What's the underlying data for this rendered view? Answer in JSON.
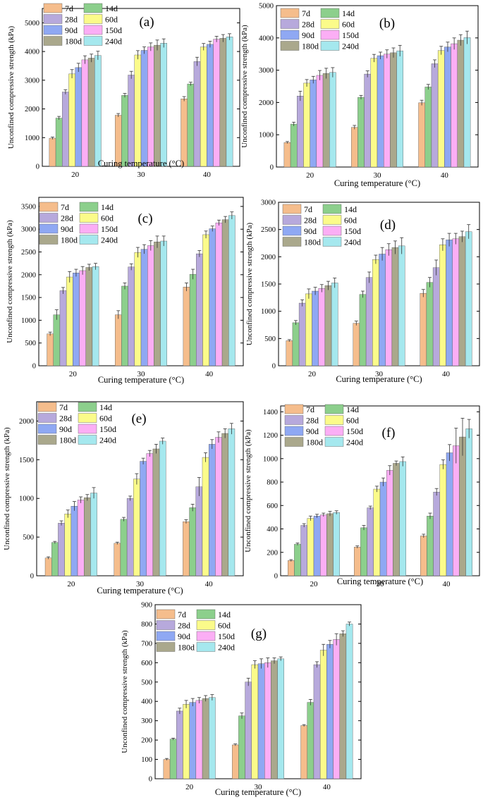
{
  "series_colors": [
    "#f5bd8c",
    "#8ccf8c",
    "#b7a9dc",
    "#fbfb8a",
    "#8fa8f3",
    "#fbaef5",
    "#aaa88c",
    "#a5e8ee"
  ],
  "chart_data": [
    {
      "id": "a",
      "type": "bar",
      "panel_label": "(a)",
      "xlabel": "Curing temperature (°C)",
      "ylabel": "Unconfined compressive strength (kPa)",
      "categories": [
        "20",
        "30",
        "40"
      ],
      "ylim": [
        0,
        5500
      ],
      "yticks": [
        0,
        1000,
        2000,
        3000,
        4000,
        5000
      ],
      "series": [
        {
          "name": "7d",
          "values": [
            980,
            1780,
            2350
          ],
          "errors": [
            40,
            60,
            80
          ]
        },
        {
          "name": "14d",
          "values": [
            1680,
            2470,
            2870
          ],
          "errors": [
            60,
            70,
            60
          ]
        },
        {
          "name": "28d",
          "values": [
            2590,
            3180,
            3650
          ],
          "errors": [
            80,
            130,
            150
          ]
        },
        {
          "name": "60d",
          "values": [
            3220,
            3880,
            4160
          ],
          "errors": [
            150,
            150,
            120
          ]
        },
        {
          "name": "90d",
          "values": [
            3440,
            4040,
            4250
          ],
          "errors": [
            150,
            120,
            110
          ]
        },
        {
          "name": "150d",
          "values": [
            3710,
            4160,
            4430
          ],
          "errors": [
            140,
            140,
            100
          ]
        },
        {
          "name": "180d",
          "values": [
            3770,
            4220,
            4460
          ],
          "errors": [
            140,
            180,
            130
          ]
        },
        {
          "name": "240d",
          "values": [
            3860,
            4290,
            4510
          ],
          "errors": [
            150,
            150,
            110
          ]
        }
      ]
    },
    {
      "id": "b",
      "type": "bar",
      "panel_label": "(b)",
      "xlabel": "Curing temperature (°C)",
      "ylabel": "Unconfined compressive strength (kPa)",
      "categories": [
        "20",
        "30",
        "40"
      ],
      "ylim": [
        0,
        5000
      ],
      "yticks": [
        0,
        1000,
        2000,
        3000,
        4000,
        5000
      ],
      "series": [
        {
          "name": "7d",
          "values": [
            760,
            1230,
            1990
          ],
          "errors": [
            30,
            60,
            80
          ]
        },
        {
          "name": "14d",
          "values": [
            1330,
            2160,
            2480
          ],
          "errors": [
            60,
            60,
            80
          ]
        },
        {
          "name": "28d",
          "values": [
            2200,
            2880,
            3200
          ],
          "errors": [
            150,
            100,
            120
          ]
        },
        {
          "name": "60d",
          "values": [
            2600,
            3370,
            3610
          ],
          "errors": [
            110,
            120,
            130
          ]
        },
        {
          "name": "90d",
          "values": [
            2700,
            3450,
            3720
          ],
          "errors": [
            110,
            110,
            150
          ]
        },
        {
          "name": "150d",
          "values": [
            2840,
            3500,
            3820
          ],
          "errors": [
            150,
            130,
            180
          ]
        },
        {
          "name": "180d",
          "values": [
            2900,
            3540,
            3930
          ],
          "errors": [
            160,
            150,
            170
          ]
        },
        {
          "name": "240d",
          "values": [
            2930,
            3600,
            4010
          ],
          "errors": [
            150,
            170,
            200
          ]
        }
      ]
    },
    {
      "id": "c",
      "type": "bar",
      "panel_label": "(c)",
      "xlabel": "Curing temperature (°C)",
      "ylabel": "Unconfined compressive strength (kPa)",
      "categories": [
        "20",
        "30",
        "40"
      ],
      "ylim": [
        0,
        3700
      ],
      "yticks": [
        0,
        500,
        1000,
        1500,
        2000,
        2500,
        3000,
        3500
      ],
      "series": [
        {
          "name": "7d",
          "values": [
            700,
            1120,
            1730
          ],
          "errors": [
            40,
            90,
            90
          ]
        },
        {
          "name": "14d",
          "values": [
            1120,
            1750,
            2010
          ],
          "errors": [
            110,
            70,
            110
          ]
        },
        {
          "name": "28d",
          "values": [
            1650,
            2170,
            2460
          ],
          "errors": [
            70,
            70,
            70
          ]
        },
        {
          "name": "60d",
          "values": [
            1950,
            2490,
            2880
          ],
          "errors": [
            120,
            110,
            80
          ]
        },
        {
          "name": "90d",
          "values": [
            2040,
            2560,
            3010
          ],
          "errors": [
            80,
            100,
            60
          ]
        },
        {
          "name": "150d",
          "values": [
            2090,
            2640,
            3140
          ],
          "errors": [
            90,
            110,
            60
          ]
        },
        {
          "name": "180d",
          "values": [
            2160,
            2720,
            3210
          ],
          "errors": [
            70,
            130,
            70
          ]
        },
        {
          "name": "240d",
          "values": [
            2180,
            2740,
            3300
          ],
          "errors": [
            70,
            110,
            80
          ]
        }
      ]
    },
    {
      "id": "d",
      "type": "bar",
      "panel_label": "(d)",
      "xlabel": "Curing temperature (°C)",
      "ylabel": "Unconfined compressive strength (kPa)",
      "categories": [
        "20",
        "30",
        "40"
      ],
      "ylim": [
        0,
        3000
      ],
      "yticks": [
        0,
        500,
        1000,
        1500,
        2000,
        2500,
        3000
      ],
      "series": [
        {
          "name": "7d",
          "values": [
            460,
            780,
            1330
          ],
          "errors": [
            20,
            40,
            70
          ]
        },
        {
          "name": "14d",
          "values": [
            790,
            1310,
            1530
          ],
          "errors": [
            40,
            60,
            90
          ]
        },
        {
          "name": "28d",
          "values": [
            1150,
            1620,
            1800
          ],
          "errors": [
            60,
            100,
            140
          ]
        },
        {
          "name": "60d",
          "values": [
            1320,
            1950,
            2220
          ],
          "errors": [
            90,
            80,
            110
          ]
        },
        {
          "name": "90d",
          "values": [
            1370,
            2050,
            2310
          ],
          "errors": [
            70,
            120,
            120
          ]
        },
        {
          "name": "150d",
          "values": [
            1420,
            2130,
            2330
          ],
          "errors": [
            70,
            110,
            100
          ]
        },
        {
          "name": "180d",
          "values": [
            1470,
            2170,
            2370
          ],
          "errors": [
            80,
            120,
            100
          ]
        },
        {
          "name": "240d",
          "values": [
            1520,
            2200,
            2460
          ],
          "errors": [
            90,
            150,
            130
          ]
        }
      ]
    },
    {
      "id": "e",
      "type": "bar",
      "panel_label": "(e)",
      "xlabel": "Curing temperature (°C)",
      "ylabel": "Unconfined compressive strength (kPa)",
      "categories": [
        "20",
        "30",
        "40"
      ],
      "ylim": [
        0,
        2250
      ],
      "yticks": [
        0,
        500,
        1000,
        1500,
        2000
      ],
      "series": [
        {
          "name": "7d",
          "values": [
            230,
            420,
            700
          ],
          "errors": [
            15,
            15,
            25
          ]
        },
        {
          "name": "14d",
          "values": [
            430,
            730,
            880
          ],
          "errors": [
            15,
            25,
            45
          ]
        },
        {
          "name": "28d",
          "values": [
            680,
            1000,
            1150
          ],
          "errors": [
            30,
            30,
            120
          ]
        },
        {
          "name": "60d",
          "values": [
            800,
            1250,
            1530
          ],
          "errors": [
            50,
            70,
            60
          ]
        },
        {
          "name": "90d",
          "values": [
            900,
            1480,
            1700
          ],
          "errors": [
            60,
            40,
            60
          ]
        },
        {
          "name": "150d",
          "values": [
            980,
            1580,
            1790
          ],
          "errors": [
            40,
            40,
            70
          ]
        },
        {
          "name": "180d",
          "values": [
            1010,
            1640,
            1840
          ],
          "errors": [
            40,
            60,
            60
          ]
        },
        {
          "name": "240d",
          "values": [
            1070,
            1740,
            1900
          ],
          "errors": [
            70,
            40,
            70
          ]
        }
      ]
    },
    {
      "id": "f",
      "type": "bar",
      "panel_label": "(f)",
      "xlabel": "Curing temperature (°C)",
      "ylabel": "Unconfined compressive strength (kPa)",
      "categories": [
        "20",
        "30",
        "40"
      ],
      "ylim": [
        0,
        1450
      ],
      "yticks": [
        0,
        200,
        400,
        600,
        800,
        1000,
        1200,
        1400
      ],
      "series": [
        {
          "name": "7d",
          "values": [
            130,
            245,
            340
          ],
          "errors": [
            8,
            10,
            15
          ]
        },
        {
          "name": "14d",
          "values": [
            270,
            410,
            510
          ],
          "errors": [
            10,
            20,
            25
          ]
        },
        {
          "name": "28d",
          "values": [
            430,
            580,
            715
          ],
          "errors": [
            15,
            15,
            30
          ]
        },
        {
          "name": "60d",
          "values": [
            490,
            740,
            950
          ],
          "errors": [
            20,
            25,
            40
          ]
        },
        {
          "name": "90d",
          "values": [
            510,
            800,
            1050
          ],
          "errors": [
            15,
            35,
            70
          ]
        },
        {
          "name": "150d",
          "values": [
            520,
            900,
            1110
          ],
          "errors": [
            15,
            40,
            150
          ]
        },
        {
          "name": "180d",
          "values": [
            530,
            960,
            1185
          ],
          "errors": [
            20,
            20,
            160
          ]
        },
        {
          "name": "240d",
          "values": [
            540,
            975,
            1255
          ],
          "errors": [
            15,
            40,
            80
          ]
        }
      ]
    },
    {
      "id": "g",
      "type": "bar",
      "panel_label": "(g)",
      "xlabel": "Curing temperature (°C)",
      "ylabel": "Unconfined compressive strength (kPa)",
      "categories": [
        "20",
        "30",
        "40"
      ],
      "ylim": [
        0,
        900
      ],
      "yticks": [
        0,
        100,
        200,
        300,
        400,
        500,
        600,
        700,
        800,
        900
      ],
      "series": [
        {
          "name": "7d",
          "values": [
            100,
            175,
            275
          ],
          "errors": [
            5,
            5,
            5
          ]
        },
        {
          "name": "14d",
          "values": [
            205,
            325,
            395
          ],
          "errors": [
            5,
            15,
            15
          ]
        },
        {
          "name": "28d",
          "values": [
            350,
            500,
            590
          ],
          "errors": [
            15,
            20,
            15
          ]
        },
        {
          "name": "60d",
          "values": [
            385,
            590,
            665
          ],
          "errors": [
            20,
            20,
            30
          ]
        },
        {
          "name": "90d",
          "values": [
            395,
            595,
            695
          ],
          "errors": [
            20,
            25,
            20
          ]
        },
        {
          "name": "150d",
          "values": [
            405,
            600,
            720
          ],
          "errors": [
            15,
            25,
            30
          ]
        },
        {
          "name": "180d",
          "values": [
            415,
            610,
            750
          ],
          "errors": [
            15,
            15,
            15
          ]
        },
        {
          "name": "240d",
          "values": [
            420,
            620,
            800
          ],
          "errors": [
            15,
            10,
            10
          ]
        }
      ]
    }
  ]
}
